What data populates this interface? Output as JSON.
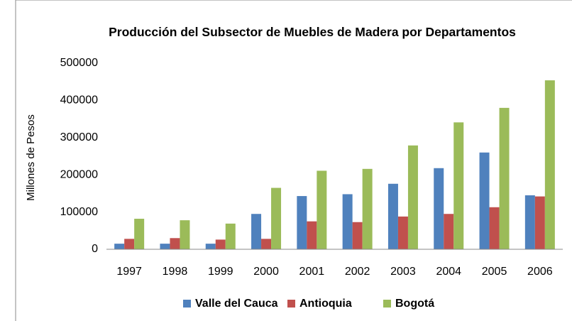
{
  "chart_data": {
    "type": "bar",
    "title": "Producción del Subsector de Muebles de Madera por Departamentos",
    "y_label": "Millones de Pesos",
    "categories": [
      "1997",
      "1998",
      "1999",
      "2000",
      "2001",
      "2002",
      "2003",
      "2004",
      "2005",
      "2006"
    ],
    "series": [
      {
        "name": "Valle del Cauca",
        "color": "#4f81bd",
        "values": [
          15000,
          15000,
          15000,
          95000,
          143000,
          148000,
          176000,
          218000,
          260000,
          145000
        ]
      },
      {
        "name": "Antioquia",
        "color": "#c0504d",
        "values": [
          28000,
          30000,
          26000,
          28000,
          75000,
          73000,
          88000,
          95000,
          113000,
          142000
        ]
      },
      {
        "name": "Bogotá",
        "color": "#9bbb59",
        "values": [
          82000,
          78000,
          69000,
          165000,
          211000,
          216000,
          279000,
          341000,
          380000,
          454000
        ]
      }
    ],
    "ylim": [
      0,
      500000
    ],
    "yticks": [
      0,
      100000,
      200000,
      300000,
      400000,
      500000
    ],
    "grid": false,
    "legend": "bottom"
  }
}
